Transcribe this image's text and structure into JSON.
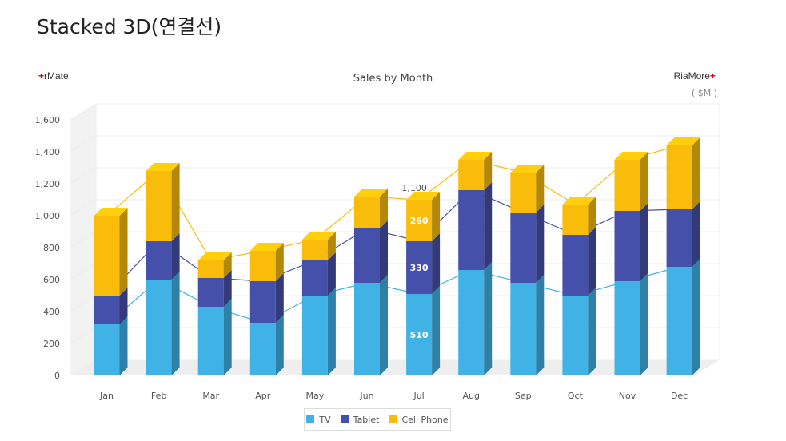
{
  "page": {
    "title": "Stacked 3D(연결선)"
  },
  "brand": {
    "left": "rMate",
    "right": "RiaMore",
    "plus": "+"
  },
  "chart_data": {
    "type": "bar",
    "stacked": true,
    "three_d": true,
    "connector_lines": true,
    "title": "Sales by Month",
    "unit": "( $M )",
    "xlabel": "",
    "ylabel": "",
    "ylim": [
      0,
      1600
    ],
    "yticks": [
      0,
      200,
      400,
      600,
      800,
      1000,
      1200,
      1400,
      1600
    ],
    "ytick_labels": [
      "0",
      "200",
      "400",
      "600",
      "800",
      "1,000",
      "1,200",
      "1,400",
      "1,600"
    ],
    "grid": true,
    "legend_position": "bottom",
    "categories": [
      "Jan",
      "Feb",
      "Mar",
      "Apr",
      "May",
      "Jun",
      "Jul",
      "Aug",
      "Sep",
      "Oct",
      "Nov",
      "Dec"
    ],
    "series": [
      {
        "name": "TV",
        "color": "#41b2e6",
        "values": [
          320,
          600,
          430,
          330,
          500,
          580,
          510,
          660,
          580,
          500,
          590,
          680
        ]
      },
      {
        "name": "Tablet",
        "color": "#4550aa",
        "values": [
          180,
          240,
          180,
          260,
          220,
          340,
          330,
          500,
          440,
          380,
          440,
          360
        ]
      },
      {
        "name": "Cell Phone",
        "color": "#f9bc0b",
        "values": [
          500,
          440,
          110,
          190,
          130,
          200,
          260,
          190,
          250,
          190,
          320,
          400
        ]
      }
    ],
    "highlight": {
      "category": "Jul",
      "total_label": "1,100",
      "segment_labels": [
        "510",
        "330",
        "260"
      ]
    }
  }
}
